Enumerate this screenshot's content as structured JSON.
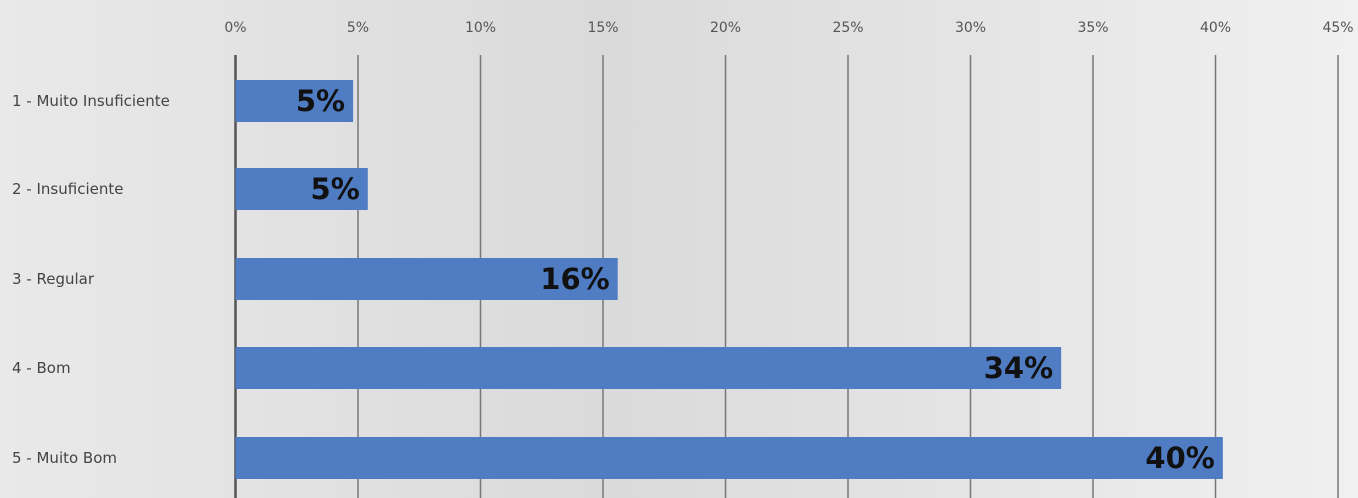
{
  "chart_data": {
    "type": "bar",
    "orientation": "horizontal",
    "categories": [
      "1 - Muito Insuficiente",
      "2 - Insuficiente",
      "3 - Regular",
      "4 - Bom",
      "5 - Muito Bom"
    ],
    "values": [
      4.8,
      5.4,
      15.6,
      33.7,
      40.3
    ],
    "data_labels": [
      "5%",
      "5%",
      "16%",
      "34%",
      "40%"
    ],
    "x_ticks": [
      "0%",
      "5%",
      "10%",
      "15%",
      "20%",
      "25%",
      "30%",
      "35%",
      "40%",
      "45%"
    ],
    "xlim": [
      0,
      45
    ],
    "x_axis_position": "top",
    "grid": true,
    "legend": "none",
    "bar_color": "#4f7cc3"
  }
}
